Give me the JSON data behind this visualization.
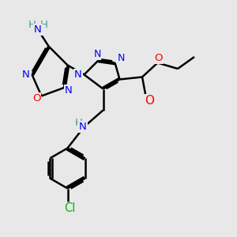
{
  "bg_color": "#e8e8e8",
  "atom_colors": {
    "N": "#0000ff",
    "O": "#ff0000",
    "Cl": "#00bb00",
    "C": "#000000",
    "H": "#4a9a9a"
  },
  "figsize": [
    3.0,
    3.0
  ],
  "dpi": 100
}
